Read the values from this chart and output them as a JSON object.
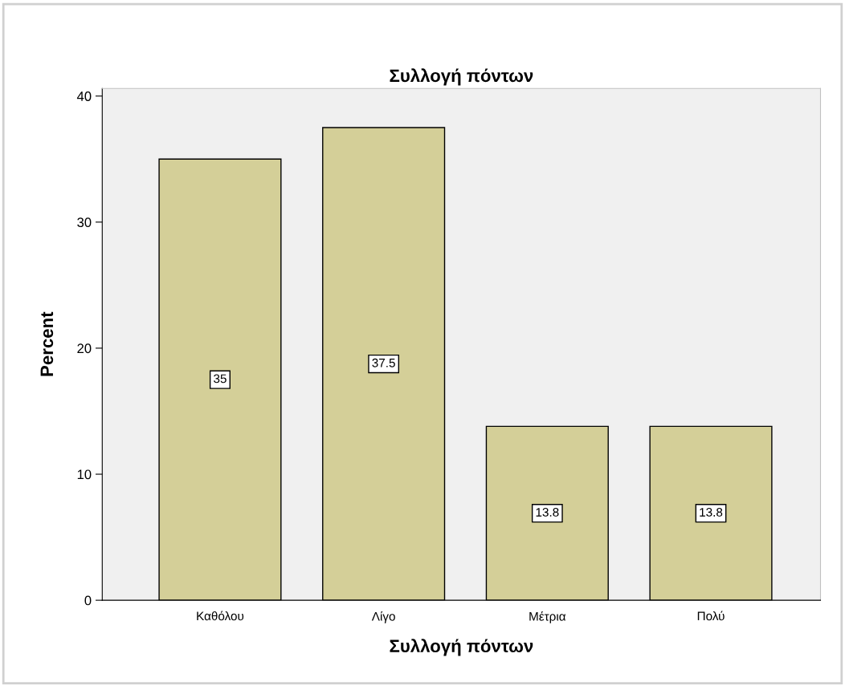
{
  "chart_data": {
    "type": "bar",
    "title": "Συλλογή πόντων",
    "xlabel": "Συλλογή πόντων",
    "ylabel": "Percent",
    "categories": [
      "Καθόλου",
      "Λίγο",
      "Μέτρια",
      "Πολύ"
    ],
    "values": [
      35,
      37.5,
      13.8,
      13.8
    ],
    "color": "#d4cf98",
    "ylim": [
      0,
      40.6
    ],
    "yticks": [
      0,
      10,
      20,
      30,
      40
    ],
    "data_labels": true,
    "grid": false,
    "legend": false
  }
}
